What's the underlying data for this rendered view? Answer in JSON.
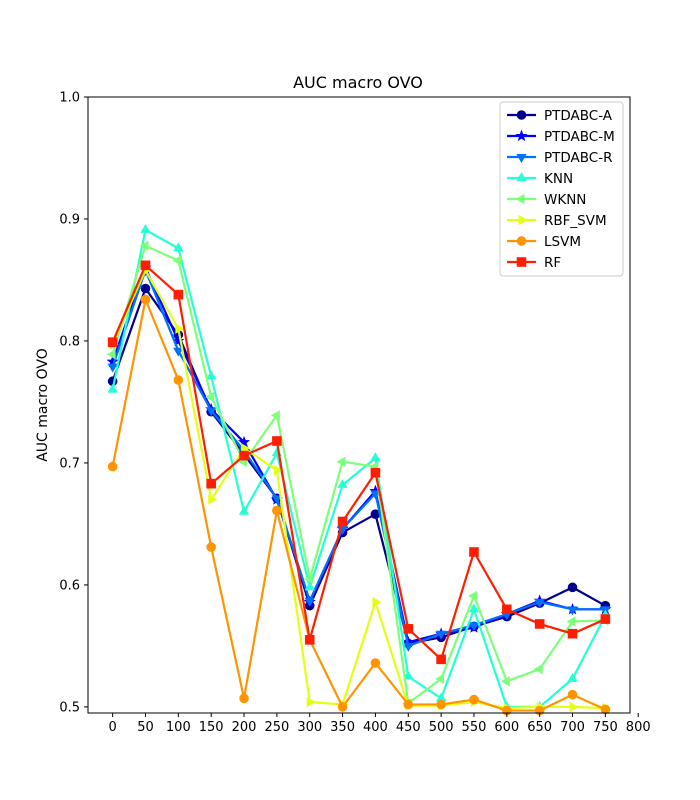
{
  "chart_data": {
    "type": "line",
    "title": "AUC macro OVO",
    "xlabel": "",
    "ylabel": "AUC macro OVO",
    "xlim": [
      -37.5,
      787.5
    ],
    "ylim": [
      0.495,
      1.0
    ],
    "xticks": [
      0,
      50,
      100,
      150,
      200,
      250,
      300,
      350,
      400,
      450,
      500,
      550,
      600,
      650,
      700,
      750,
      800
    ],
    "yticks": [
      0.5,
      0.6,
      0.7,
      0.8,
      0.9,
      1.0
    ],
    "ytick_labels": [
      "0.5",
      "0.6",
      "0.7",
      "0.8",
      "0.9",
      "1.0"
    ],
    "grid": false,
    "legend_position": "top-right",
    "x": [
      0,
      50,
      100,
      150,
      200,
      250,
      300,
      350,
      400,
      450,
      500,
      550,
      600,
      650,
      700,
      750
    ],
    "series": [
      {
        "name": "PTDABC-A",
        "color": "#00008f",
        "marker": "circle",
        "values": [
          0.767,
          0.843,
          0.805,
          0.742,
          0.707,
          0.671,
          0.583,
          0.643,
          0.658,
          0.552,
          0.557,
          0.566,
          0.574,
          0.585,
          0.598,
          0.583
        ]
      },
      {
        "name": "PTDABC-M",
        "color": "#0000ff",
        "marker": "star",
        "values": [
          0.783,
          0.86,
          0.8,
          0.744,
          0.717,
          0.67,
          0.586,
          0.646,
          0.677,
          0.553,
          0.56,
          0.565,
          0.576,
          0.587,
          0.58,
          0.58
        ]
      },
      {
        "name": "PTDABC-R",
        "color": "#0070ff",
        "marker": "triangle-down",
        "values": [
          0.779,
          0.858,
          0.792,
          0.743,
          0.71,
          0.671,
          0.587,
          0.646,
          0.675,
          0.55,
          0.56,
          0.567,
          0.576,
          0.586,
          0.58,
          0.58
        ]
      },
      {
        "name": "KNN",
        "color": "#26ffd4",
        "marker": "triangle-up",
        "values": [
          0.76,
          0.891,
          0.876,
          0.771,
          0.66,
          0.708,
          0.598,
          0.682,
          0.704,
          0.525,
          0.507,
          0.58,
          0.5,
          0.5,
          0.523,
          0.575
        ]
      },
      {
        "name": "WKNN",
        "color": "#7dff7a",
        "marker": "triangle-left",
        "values": [
          0.789,
          0.878,
          0.866,
          0.754,
          0.701,
          0.739,
          0.605,
          0.701,
          0.697,
          0.503,
          0.523,
          0.591,
          0.521,
          0.531,
          0.57,
          0.571
        ]
      },
      {
        "name": "RBF_SVM",
        "color": "#e4ff13",
        "marker": "triangle-right",
        "values": [
          0.797,
          0.858,
          0.81,
          0.67,
          0.712,
          0.694,
          0.504,
          0.502,
          0.586,
          0.501,
          0.501,
          0.504,
          0.499,
          0.5,
          0.5,
          0.499
        ]
      },
      {
        "name": "LSVM",
        "color": "#ff9400",
        "marker": "circle",
        "values": [
          0.697,
          0.834,
          0.768,
          0.631,
          0.507,
          0.661,
          0.555,
          0.5,
          0.536,
          0.502,
          0.502,
          0.506,
          0.497,
          0.497,
          0.51,
          0.498
        ]
      },
      {
        "name": "RF",
        "color": "#ff1e00",
        "marker": "square",
        "values": [
          0.799,
          0.862,
          0.838,
          0.683,
          0.706,
          0.718,
          0.555,
          0.652,
          0.692,
          0.564,
          0.539,
          0.627,
          0.58,
          0.568,
          0.56,
          0.572
        ]
      }
    ]
  }
}
